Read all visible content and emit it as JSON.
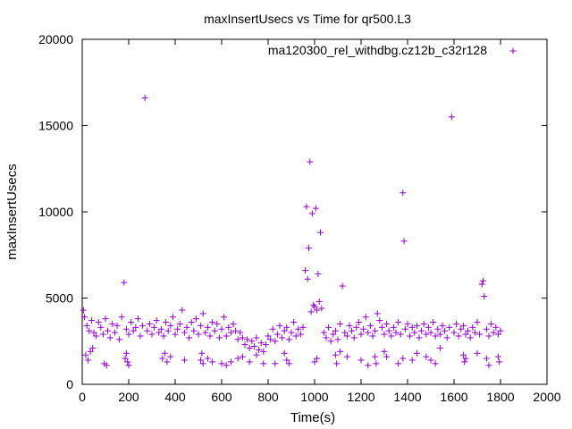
{
  "chart_data": {
    "type": "scatter",
    "title": "maxInsertUsecs vs Time for qr500.L3",
    "xlabel": "Time(s)",
    "ylabel": "maxInsertUsecs",
    "xlim": [
      0,
      2000
    ],
    "ylim": [
      0,
      20000
    ],
    "xticks": [
      0,
      200,
      400,
      600,
      800,
      1000,
      1200,
      1400,
      1600,
      1800,
      2000
    ],
    "yticks": [
      0,
      5000,
      10000,
      15000,
      20000
    ],
    "grid": false,
    "legend_position": "top-right",
    "marker": "+",
    "series": [
      {
        "name": "ma120300_rel_withdbg.cz12b_c32r128",
        "color": "#9400d3",
        "points": [
          [
            5,
            4300
          ],
          [
            10,
            3900
          ],
          [
            20,
            3400
          ],
          [
            30,
            3100
          ],
          [
            40,
            3700
          ],
          [
            50,
            3000
          ],
          [
            60,
            2800
          ],
          [
            70,
            3600
          ],
          [
            80,
            3300
          ],
          [
            90,
            2900
          ],
          [
            100,
            3800
          ],
          [
            110,
            3100
          ],
          [
            120,
            2700
          ],
          [
            130,
            3500
          ],
          [
            140,
            3000
          ],
          [
            150,
            3400
          ],
          [
            160,
            2600
          ],
          [
            170,
            3900
          ],
          [
            180,
            5900
          ],
          [
            190,
            3200
          ],
          [
            200,
            2900
          ],
          [
            210,
            3600
          ],
          [
            220,
            3100
          ],
          [
            230,
            3300
          ],
          [
            240,
            3800
          ],
          [
            250,
            2800
          ],
          [
            260,
            3400
          ],
          [
            270,
            16600
          ],
          [
            280,
            3100
          ],
          [
            290,
            3500
          ],
          [
            300,
            2900
          ],
          [
            310,
            3300
          ],
          [
            320,
            3700
          ],
          [
            330,
            3000
          ],
          [
            340,
            3200
          ],
          [
            350,
            2800
          ],
          [
            360,
            3600
          ],
          [
            370,
            3100
          ],
          [
            380,
            3400
          ],
          [
            390,
            3900
          ],
          [
            400,
            2900
          ],
          [
            410,
            3200
          ],
          [
            420,
            3500
          ],
          [
            430,
            4300
          ],
          [
            440,
            3000
          ],
          [
            450,
            3300
          ],
          [
            460,
            2700
          ],
          [
            470,
            3600
          ],
          [
            480,
            3100
          ],
          [
            490,
            3800
          ],
          [
            500,
            2900
          ],
          [
            510,
            3400
          ],
          [
            520,
            4100
          ],
          [
            530,
            3000
          ],
          [
            540,
            3300
          ],
          [
            550,
            2800
          ],
          [
            560,
            3600
          ],
          [
            570,
            3100
          ],
          [
            580,
            3500
          ],
          [
            590,
            2700
          ],
          [
            600,
            3200
          ],
          [
            610,
            3900
          ],
          [
            620,
            2800
          ],
          [
            630,
            3300
          ],
          [
            640,
            3000
          ],
          [
            650,
            3500
          ],
          [
            660,
            3100
          ],
          [
            670,
            2600
          ],
          [
            680,
            3000
          ],
          [
            690,
            2700
          ],
          [
            700,
            2300
          ],
          [
            710,
            2600
          ],
          [
            720,
            2100
          ],
          [
            730,
            2500
          ],
          [
            740,
            2200
          ],
          [
            750,
            2700
          ],
          [
            760,
            2000
          ],
          [
            770,
            2400
          ],
          [
            780,
            1900
          ],
          [
            790,
            2300
          ],
          [
            800,
            2800
          ],
          [
            810,
            2600
          ],
          [
            820,
            3200
          ],
          [
            830,
            2500
          ],
          [
            840,
            2900
          ],
          [
            850,
            3400
          ],
          [
            860,
            2700
          ],
          [
            870,
            3100
          ],
          [
            880,
            3300
          ],
          [
            890,
            2600
          ],
          [
            900,
            3000
          ],
          [
            910,
            3600
          ],
          [
            920,
            2800
          ],
          [
            930,
            3200
          ],
          [
            940,
            2900
          ],
          [
            950,
            3300
          ],
          [
            960,
            6600
          ],
          [
            965,
            10300
          ],
          [
            970,
            6100
          ],
          [
            975,
            7900
          ],
          [
            980,
            12900
          ],
          [
            985,
            4200
          ],
          [
            990,
            9900
          ],
          [
            995,
            4600
          ],
          [
            1000,
            4500
          ],
          [
            1005,
            10200
          ],
          [
            1010,
            4300
          ],
          [
            1015,
            6400
          ],
          [
            1020,
            4800
          ],
          [
            1025,
            8800
          ],
          [
            1030,
            4400
          ],
          [
            1040,
            3000
          ],
          [
            1050,
            2700
          ],
          [
            1060,
            3300
          ],
          [
            1070,
            2500
          ],
          [
            1080,
            2900
          ],
          [
            1090,
            3100
          ],
          [
            1100,
            2600
          ],
          [
            1110,
            3500
          ],
          [
            1120,
            5700
          ],
          [
            1130,
            3000
          ],
          [
            1140,
            2800
          ],
          [
            1150,
            3400
          ],
          [
            1160,
            3100
          ],
          [
            1170,
            2700
          ],
          [
            1180,
            3300
          ],
          [
            1190,
            3600
          ],
          [
            1200,
            2900
          ],
          [
            1210,
            3200
          ],
          [
            1220,
            3900
          ],
          [
            1230,
            3000
          ],
          [
            1240,
            3400
          ],
          [
            1250,
            2800
          ],
          [
            1260,
            3100
          ],
          [
            1270,
            4100
          ],
          [
            1280,
            3700
          ],
          [
            1290,
            3300
          ],
          [
            1300,
            2900
          ],
          [
            1310,
            3500
          ],
          [
            1320,
            3100
          ],
          [
            1330,
            2800
          ],
          [
            1340,
            3300
          ],
          [
            1350,
            3000
          ],
          [
            1360,
            3600
          ],
          [
            1370,
            2900
          ],
          [
            1380,
            11100
          ],
          [
            1385,
            8300
          ],
          [
            1390,
            3200
          ],
          [
            1400,
            3500
          ],
          [
            1410,
            2800
          ],
          [
            1420,
            3300
          ],
          [
            1430,
            3000
          ],
          [
            1440,
            3400
          ],
          [
            1450,
            2700
          ],
          [
            1460,
            3100
          ],
          [
            1470,
            3500
          ],
          [
            1480,
            2900
          ],
          [
            1490,
            3300
          ],
          [
            1500,
            3000
          ],
          [
            1510,
            3600
          ],
          [
            1520,
            2800
          ],
          [
            1530,
            3200
          ],
          [
            1540,
            2900
          ],
          [
            1550,
            3400
          ],
          [
            1560,
            3100
          ],
          [
            1570,
            2700
          ],
          [
            1580,
            3300
          ],
          [
            1590,
            15500
          ],
          [
            1600,
            3000
          ],
          [
            1610,
            3500
          ],
          [
            1620,
            2800
          ],
          [
            1630,
            3200
          ],
          [
            1640,
            3400
          ],
          [
            1650,
            2900
          ],
          [
            1660,
            3100
          ],
          [
            1670,
            2700
          ],
          [
            1680,
            3300
          ],
          [
            1690,
            3000
          ],
          [
            1700,
            3600
          ],
          [
            1710,
            2900
          ],
          [
            1720,
            5800
          ],
          [
            1725,
            6000
          ],
          [
            1730,
            5100
          ],
          [
            1740,
            3200
          ],
          [
            1750,
            2800
          ],
          [
            1760,
            3500
          ],
          [
            1770,
            3000
          ],
          [
            1780,
            3300
          ],
          [
            1790,
            2900
          ],
          [
            1800,
            3100
          ],
          [
            15,
            1700
          ],
          [
            25,
            1400
          ],
          [
            35,
            1900
          ],
          [
            45,
            2100
          ],
          [
            95,
            1200
          ],
          [
            105,
            1100
          ],
          [
            185,
            1500
          ],
          [
            190,
            1800
          ],
          [
            195,
            1300
          ],
          [
            200,
            1100
          ],
          [
            345,
            1500
          ],
          [
            355,
            1800
          ],
          [
            365,
            1300
          ],
          [
            380,
            1600
          ],
          [
            440,
            1400
          ],
          [
            510,
            1400
          ],
          [
            515,
            1800
          ],
          [
            520,
            1200
          ],
          [
            540,
            1500
          ],
          [
            560,
            1300
          ],
          [
            600,
            1200
          ],
          [
            620,
            1100
          ],
          [
            640,
            1300
          ],
          [
            670,
            1500
          ],
          [
            690,
            1600
          ],
          [
            720,
            1300
          ],
          [
            750,
            1700
          ],
          [
            780,
            1200
          ],
          [
            830,
            1200
          ],
          [
            870,
            1800
          ],
          [
            880,
            1400
          ],
          [
            890,
            1200
          ],
          [
            1000,
            1300
          ],
          [
            1010,
            1500
          ],
          [
            1090,
            1700
          ],
          [
            1095,
            1200
          ],
          [
            1110,
            1900
          ],
          [
            1140,
            1600
          ],
          [
            1200,
            1400
          ],
          [
            1230,
            1100
          ],
          [
            1260,
            1600
          ],
          [
            1265,
            1200
          ],
          [
            1300,
            1900
          ],
          [
            1310,
            1600
          ],
          [
            1360,
            1200
          ],
          [
            1380,
            1500
          ],
          [
            1420,
            1400
          ],
          [
            1440,
            1800
          ],
          [
            1480,
            1600
          ],
          [
            1500,
            1400
          ],
          [
            1520,
            1200
          ],
          [
            1540,
            2100
          ],
          [
            1640,
            1700
          ],
          [
            1645,
            1300
          ],
          [
            1650,
            1500
          ],
          [
            1700,
            1800
          ],
          [
            1740,
            1500
          ],
          [
            1750,
            1100
          ],
          [
            1790,
            1600
          ],
          [
            1795,
            1300
          ]
        ]
      }
    ]
  }
}
